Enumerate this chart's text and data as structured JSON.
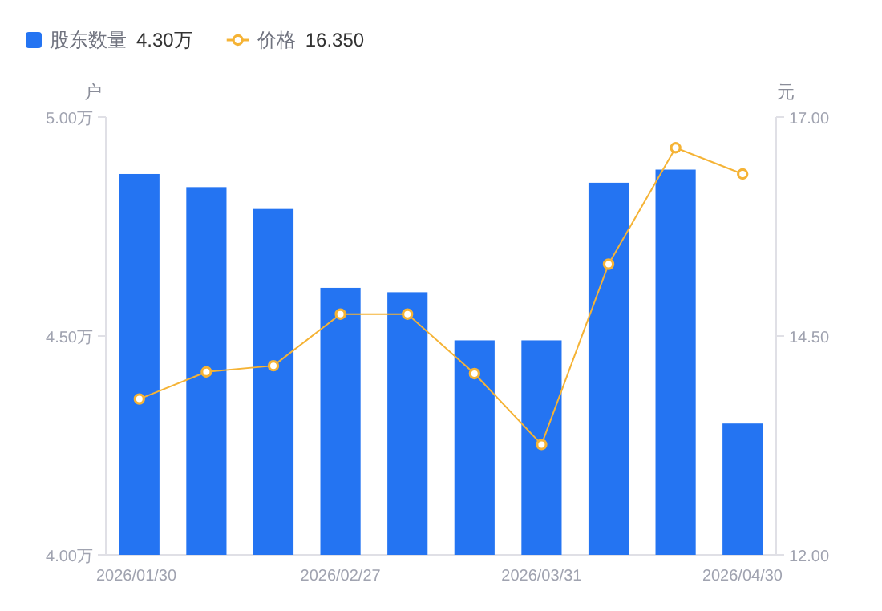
{
  "chart_data": {
    "type": "bar",
    "categories": [
      "2026/01/30",
      null,
      null,
      "2026/02/27",
      null,
      null,
      "2026/03/31",
      null,
      null,
      "2026/04/30"
    ],
    "series": [
      {
        "name": "股东数量",
        "color": "#2474f2",
        "values": [
          4.87,
          4.84,
          4.79,
          4.61,
          4.6,
          4.49,
          4.49,
          4.85,
          4.88,
          4.3
        ]
      },
      {
        "name": "价格",
        "type": "line",
        "axis": "y2",
        "color": "#f5b335",
        "values": [
          13.78,
          14.09,
          14.16,
          14.75,
          14.75,
          14.07,
          13.26,
          15.32,
          16.65,
          16.35
        ]
      }
    ],
    "annotations": [
      "4.30万",
      "16.350"
    ],
    "ylabel": "户",
    "y2label": "元",
    "ylim": [
      4.0,
      5.0
    ],
    "yticks": [
      {
        "value": 4.0,
        "label": "4.00万"
      },
      {
        "value": 4.5,
        "label": "4.50万"
      },
      {
        "value": 5.0,
        "label": "5.00万"
      }
    ],
    "y2lim": [
      12,
      17
    ],
    "y2ticks": [
      {
        "value": 12,
        "label": "12.00"
      },
      {
        "value": 14.5,
        "label": "14.50"
      },
      {
        "value": 17,
        "label": "17.00"
      }
    ],
    "legend": "top left",
    "marker": "circle"
  }
}
